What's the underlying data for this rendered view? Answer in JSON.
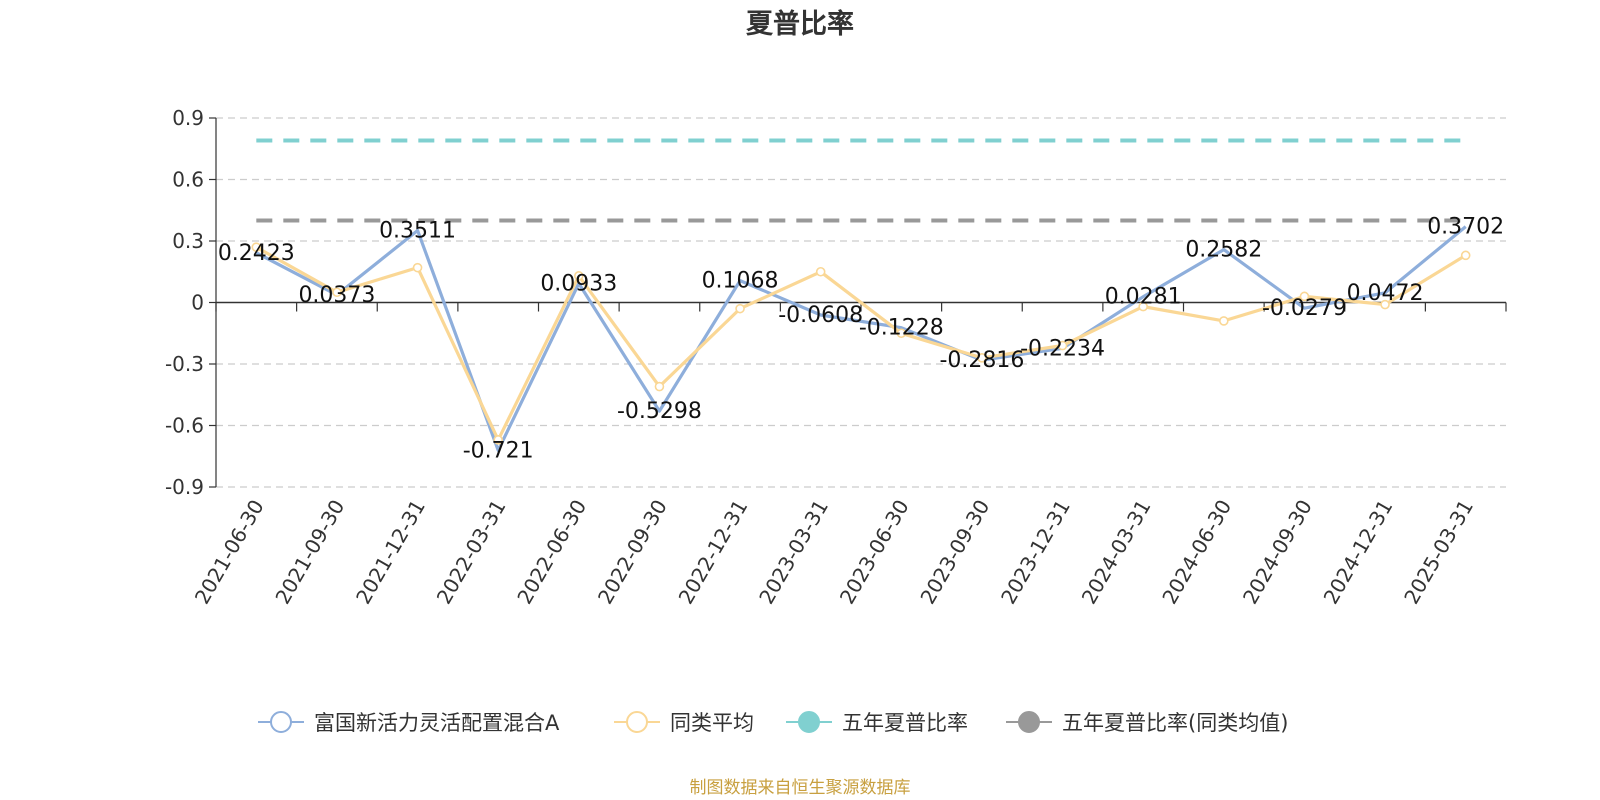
{
  "chart_data": {
    "type": "line",
    "title": "夏普比率",
    "xlabel": "",
    "ylabel": "",
    "ylim": [
      -0.9,
      0.9
    ],
    "yticks": [
      "0.9",
      "0.6",
      "0.3",
      "0",
      "-0.3",
      "-0.6",
      "-0.9"
    ],
    "categories": [
      "2021-06-30",
      "2021-09-30",
      "2021-12-31",
      "2022-03-31",
      "2022-06-30",
      "2022-09-30",
      "2022-12-31",
      "2023-03-31",
      "2023-06-30",
      "2023-09-30",
      "2023-12-31",
      "2024-03-31",
      "2024-06-30",
      "2024-09-30",
      "2024-12-31",
      "2025-03-31"
    ],
    "series": [
      {
        "name": "富国新活力灵活配置混合A",
        "color": "#8eaedb",
        "values": [
          0.2423,
          0.0373,
          0.3511,
          -0.721,
          0.0933,
          -0.5298,
          0.1068,
          -0.0608,
          -0.1228,
          -0.2816,
          -0.2234,
          0.0281,
          0.2582,
          -0.0279,
          0.0472,
          0.3702
        ],
        "labels": [
          "0.2423",
          "0.0373",
          "0.3511",
          "-0.721",
          "0.0933",
          "-0.5298",
          "0.1068",
          "-0.0608",
          "-0.1228",
          "-0.2816",
          "-0.2234",
          "0.0281",
          "0.2582",
          "-0.0279",
          "0.0472",
          "0.3702"
        ]
      },
      {
        "name": "同类平均",
        "color": "#fad795",
        "values": [
          0.27,
          0.05,
          0.17,
          -0.67,
          0.13,
          -0.41,
          -0.03,
          0.15,
          -0.15,
          -0.27,
          -0.21,
          -0.02,
          -0.09,
          0.03,
          -0.01,
          0.23
        ]
      },
      {
        "name": "五年夏普比率",
        "color": "#80d0d0",
        "constant": 0.79,
        "dashed": true
      },
      {
        "name": "五年夏普比率(同类均值)",
        "color": "#999999",
        "constant": 0.4,
        "dashed": true
      }
    ],
    "grid": true,
    "legend_position": "bottom"
  },
  "footer": {
    "source": "制图数据来自恒生聚源数据库"
  }
}
